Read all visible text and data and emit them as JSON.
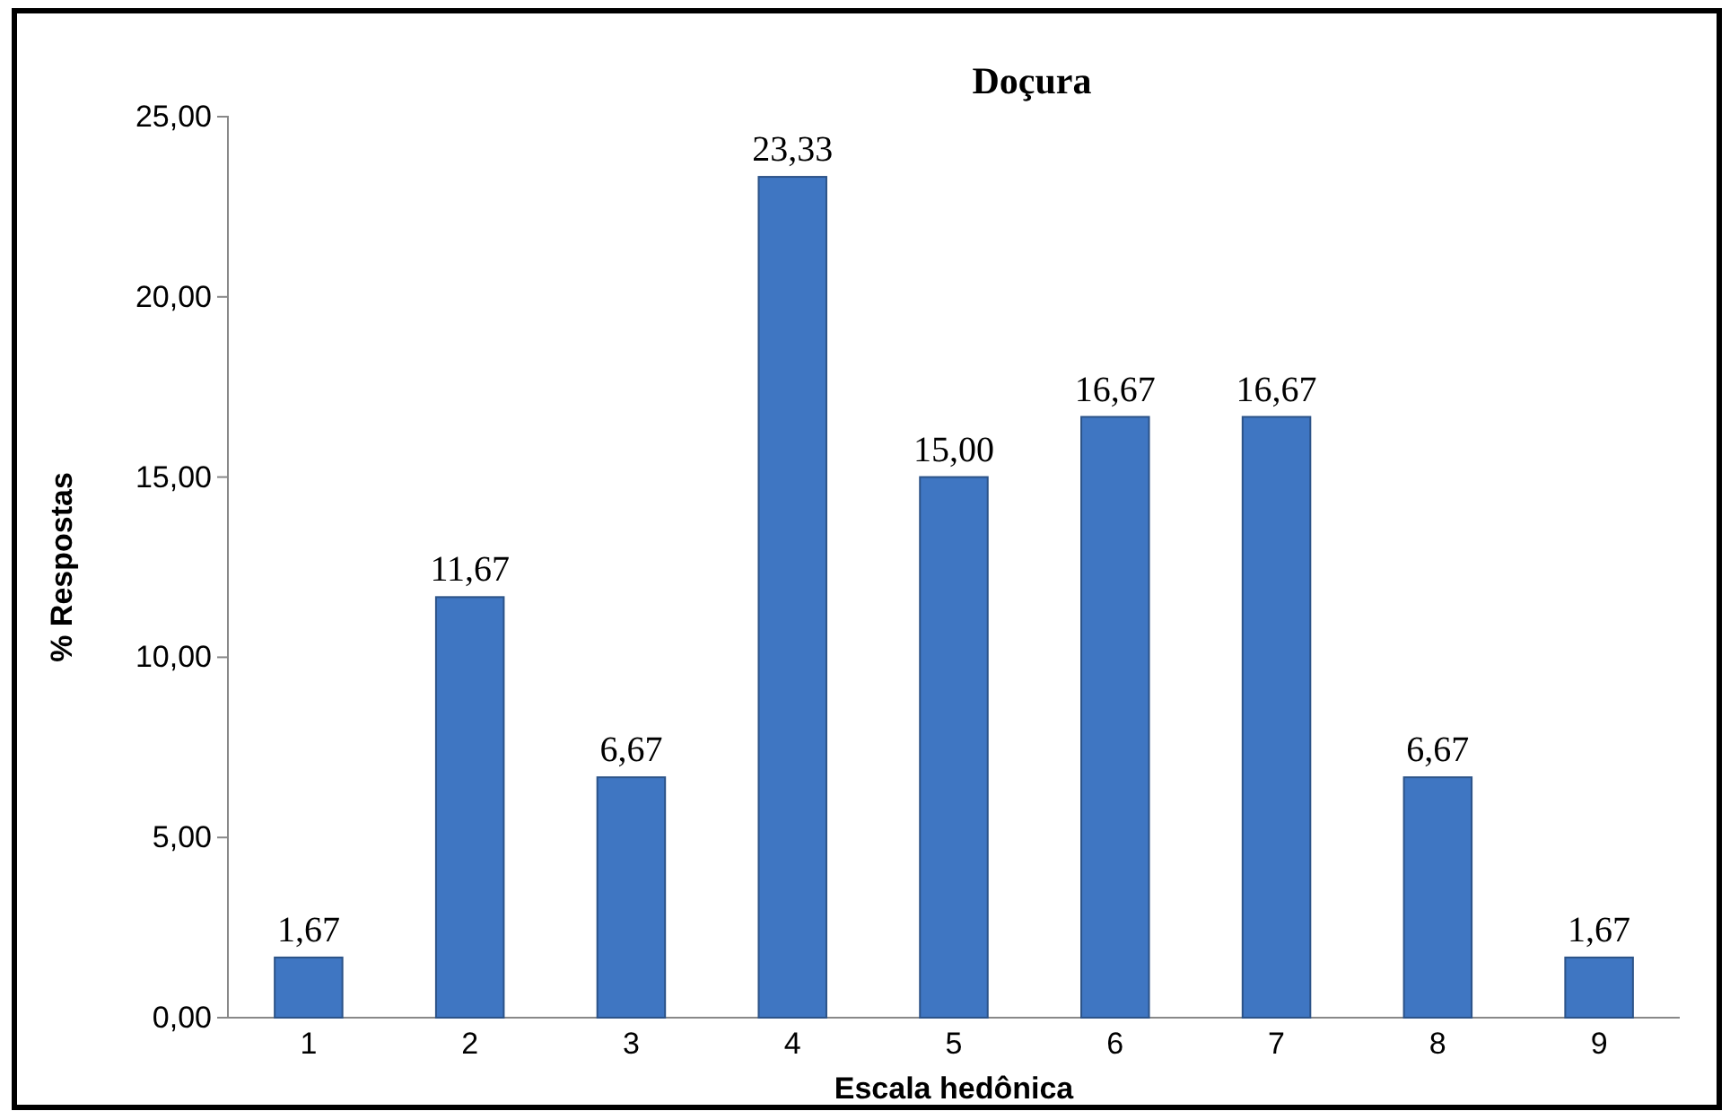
{
  "chart_data": {
    "type": "bar",
    "title": "Doçura",
    "xlabel": "Escala hedônica",
    "ylabel": "% Respostas",
    "categories": [
      "1",
      "2",
      "3",
      "4",
      "5",
      "6",
      "7",
      "8",
      "9"
    ],
    "values": [
      1.67,
      11.67,
      6.67,
      23.33,
      15.0,
      16.67,
      16.67,
      6.67,
      1.67
    ],
    "value_labels": [
      "1,67",
      "11,67",
      "6,67",
      "23,33",
      "15,00",
      "16,67",
      "16,67",
      "6,67",
      "1,67"
    ],
    "color": "#3f76c2",
    "ylim": [
      0,
      25
    ],
    "yticks": [
      {
        "value": 0,
        "label": "0,00"
      },
      {
        "value": 5,
        "label": "5,00"
      },
      {
        "value": 10,
        "label": "10,00"
      },
      {
        "value": 15,
        "label": "15,00"
      },
      {
        "value": 20,
        "label": "20,00"
      },
      {
        "value": 25,
        "label": "25,00"
      }
    ],
    "grid": false
  }
}
